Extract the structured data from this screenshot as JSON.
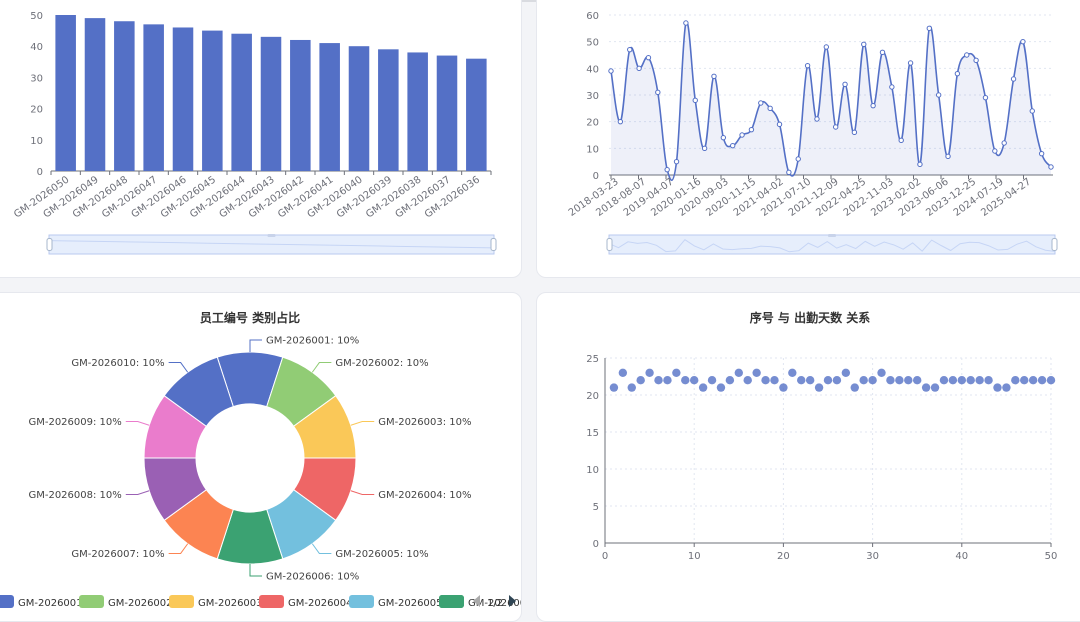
{
  "chart_data": [
    {
      "type": "bar",
      "categories": [
        "GM-2026050",
        "GM-2026049",
        "GM-2026048",
        "GM-2026047",
        "GM-2026046",
        "GM-2026045",
        "GM-2026044",
        "GM-2026043",
        "GM-2026042",
        "GM-2026041",
        "GM-2026040",
        "GM-2026039",
        "GM-2026038",
        "GM-2026037",
        "GM-2026036"
      ],
      "values": [
        50,
        49,
        48,
        47,
        46,
        45,
        44,
        43,
        42,
        41,
        40,
        39,
        38,
        37,
        36
      ],
      "ylim": [
        0,
        50
      ],
      "yticks": [
        "0",
        "10",
        "20",
        "30",
        "40",
        "50"
      ],
      "color": "#5470c6",
      "grid": false,
      "data_zoom": true
    },
    {
      "type": "area",
      "x_tick_labels": [
        "2018-03-23",
        "2018-08-07",
        "2019-04-07",
        "2020-01-16",
        "2020-09-03",
        "2020-11-15",
        "2021-04-02",
        "2021-07-10",
        "2021-12-09",
        "2022-04-25",
        "2022-11-03",
        "2023-02-02",
        "2023-06-06",
        "2023-12-25",
        "2024-07-19",
        "2025-04-27"
      ],
      "values": [
        39,
        20,
        47,
        40,
        44,
        31,
        2,
        5,
        57,
        28,
        10,
        37,
        14,
        11,
        15,
        17,
        27,
        25,
        19,
        1,
        6,
        41,
        21,
        48,
        18,
        34,
        16,
        49,
        26,
        46,
        33,
        13,
        42,
        4,
        55,
        30,
        7,
        38,
        45,
        43,
        29,
        9,
        12,
        36,
        50,
        24,
        8,
        3
      ],
      "ylim": [
        0,
        60
      ],
      "yticks": [
        "0",
        "10",
        "20",
        "30",
        "40",
        "50",
        "60"
      ],
      "color": "#5470c6",
      "smooth": true,
      "grid": true,
      "data_zoom": true
    },
    {
      "type": "pie",
      "title": "员工编号 类别占比",
      "slices": [
        {
          "name": "GM-2026001",
          "value": 10,
          "label": "GM-2026001: 10%"
        },
        {
          "name": "GM-2026002",
          "value": 10,
          "label": "GM-2026002: 10%"
        },
        {
          "name": "GM-2026003",
          "value": 10,
          "label": "GM-2026003: 10%"
        },
        {
          "name": "GM-2026004",
          "value": 10,
          "label": "GM-2026004: 10%"
        },
        {
          "name": "GM-2026005",
          "value": 10,
          "label": "GM-2026005: 10%"
        },
        {
          "name": "GM-2026006",
          "value": 10,
          "label": "GM-2026006: 10%"
        },
        {
          "name": "GM-2026007",
          "value": 10,
          "label": "GM-2026007: 10%"
        },
        {
          "name": "GM-2026008",
          "value": 10,
          "label": "GM-2026008: 10%"
        },
        {
          "name": "GM-2026009",
          "value": 10,
          "label": "GM-2026009: 10%"
        },
        {
          "name": "GM-2026010",
          "value": 10,
          "label": "GM-2026010: 10%"
        }
      ],
      "colors": [
        "#5470c6",
        "#91cc75",
        "#fac858",
        "#ee6666",
        "#73c0de",
        "#3ba272",
        "#fc8452",
        "#9a60b4",
        "#ea7ccc",
        "#5470c6"
      ],
      "donut": true,
      "legend": {
        "position": "bottom",
        "items": [
          "GM-2026001",
          "GM-2026002",
          "GM-2026003",
          "GM-2026004",
          "GM-2026005",
          "GM-2026006"
        ],
        "page": "1/2"
      }
    },
    {
      "type": "scatter",
      "title": "序号 与 出勤天数 关系",
      "x": [
        1,
        2,
        3,
        4,
        5,
        6,
        7,
        8,
        9,
        10,
        11,
        12,
        13,
        14,
        15,
        16,
        17,
        18,
        19,
        20,
        21,
        22,
        23,
        24,
        25,
        26,
        27,
        28,
        29,
        30,
        31,
        32,
        33,
        34,
        35,
        36,
        37,
        38,
        39,
        40,
        41,
        42,
        43,
        44,
        45,
        46,
        47,
        48,
        49,
        50
      ],
      "y": [
        21,
        23,
        21,
        22,
        23,
        22,
        22,
        23,
        22,
        22,
        21,
        22,
        21,
        22,
        23,
        22,
        23,
        22,
        22,
        21,
        23,
        22,
        22,
        21,
        22,
        22,
        23,
        21,
        22,
        22,
        23,
        22,
        22,
        22,
        22,
        21,
        21,
        22,
        22,
        22,
        22,
        22,
        22,
        21,
        21,
        22,
        22,
        22,
        22,
        22
      ],
      "xlim": [
        0,
        50
      ],
      "ylim": [
        0,
        25
      ],
      "xticks": [
        "0",
        "10",
        "20",
        "30",
        "40",
        "50"
      ],
      "yticks": [
        "0",
        "5",
        "10",
        "15",
        "20",
        "25"
      ],
      "color": "#5470c6",
      "grid": true
    }
  ]
}
